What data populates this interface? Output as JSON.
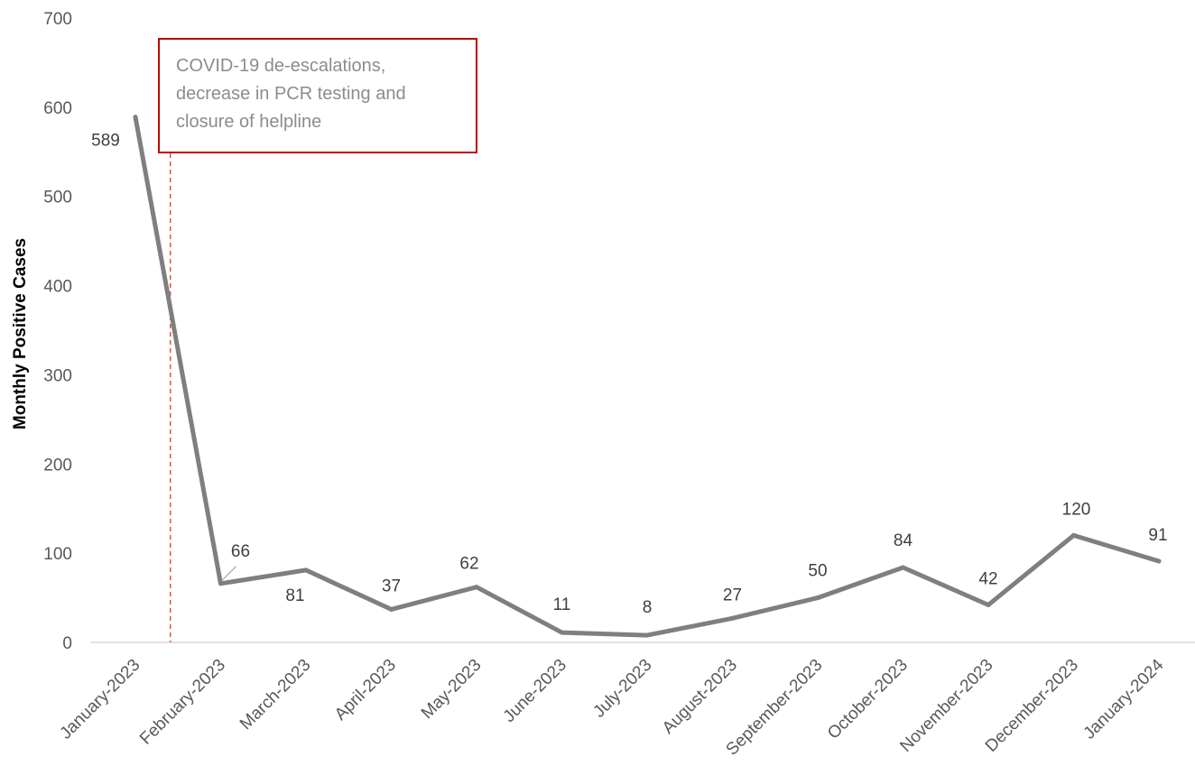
{
  "chart_data": {
    "type": "line",
    "categories": [
      "January-2023",
      "February-2023",
      "March-2023",
      "April-2023",
      "May-2023",
      "June-2023",
      "July-2023",
      "August-2023",
      "September-2023",
      "October-2023",
      "November-2023",
      "December-2023",
      "January-2024"
    ],
    "values": [
      589,
      66,
      81,
      37,
      62,
      11,
      8,
      27,
      50,
      84,
      42,
      120,
      91
    ],
    "data_labels": [
      "589",
      "66",
      "81",
      "37",
      "62",
      "11",
      "8",
      "27",
      "50",
      "84",
      "42",
      "120",
      "91"
    ],
    "title": "",
    "xlabel": "",
    "ylabel": "Monthly Positive Cases",
    "ylim": [
      0,
      700
    ],
    "yticks": [
      0,
      100,
      200,
      300,
      400,
      500,
      600,
      700
    ],
    "ytick_labels": [
      "0",
      "100",
      "200",
      "300",
      "400",
      "500",
      "600",
      "700"
    ],
    "grid": false,
    "legend": "none",
    "line_color": "#7f7f7f",
    "annotation": {
      "lines": [
        "COVID-19 de-escalations,",
        "decrease in PCR testing and",
        "closure of helpline"
      ],
      "border_color": "#c00000",
      "marker_color": "#e8543a",
      "marker_position": "between January-2023 and February-2023"
    }
  }
}
